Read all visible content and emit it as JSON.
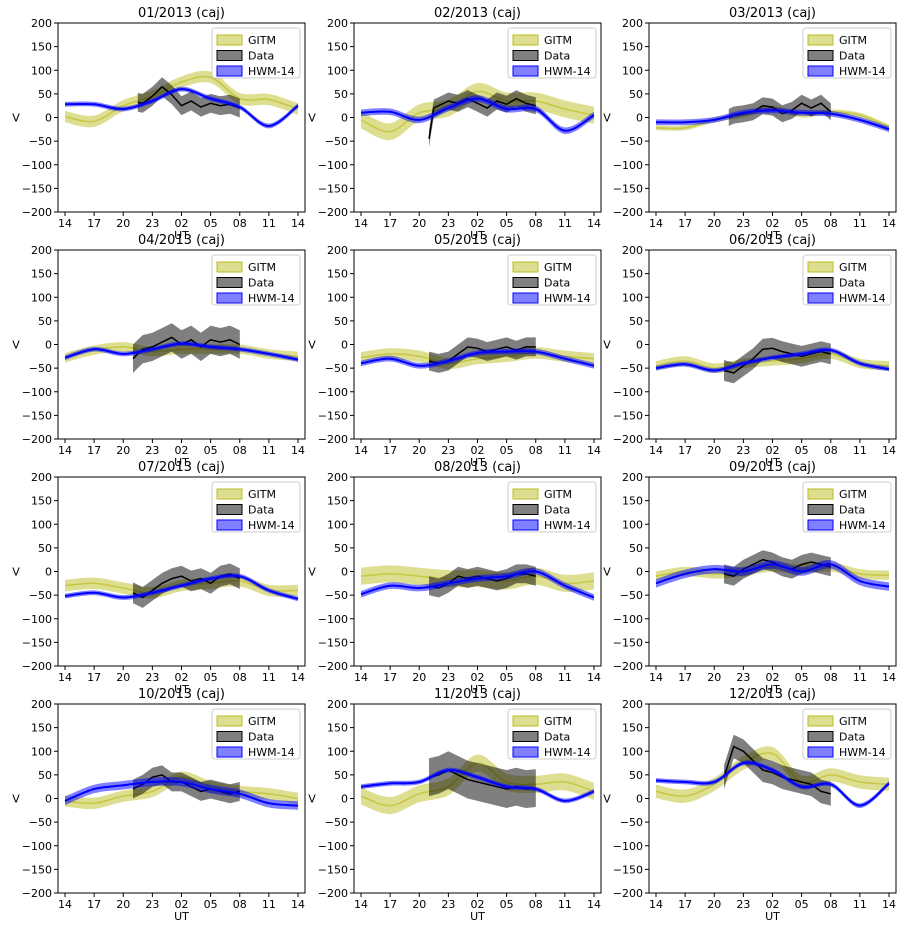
{
  "colors": {
    "gitm": "#bcbd22",
    "data": "#000000",
    "hwm": "#0000ff"
  },
  "legend_labels": [
    "GITM",
    "Data",
    "HWM-14"
  ],
  "ylabel": "V",
  "xlabel": "UT",
  "x_ticks": [
    "14",
    "17",
    "20",
    "23",
    "02",
    "05",
    "08",
    "11",
    "14"
  ],
  "y_ticks": [
    "200",
    "150",
    "100",
    "50",
    "0",
    "−50",
    "−100",
    "−150",
    "−200"
  ],
  "ylim": [
    -200,
    200
  ],
  "chart_data": [
    {
      "type": "line",
      "title": "01/2013 (caj)",
      "x": [
        0,
        3,
        6,
        9,
        12,
        15,
        18,
        21,
        24
      ],
      "series": [
        {
          "name": "GITM",
          "values": [
            2,
            -8,
            25,
            45,
            75,
            85,
            40,
            38,
            18
          ],
          "band": 12
        },
        {
          "name": "Data",
          "x": [
            7.5,
            8,
            9,
            10,
            11,
            12,
            13,
            14,
            15,
            16,
            17,
            18
          ],
          "values": [
            32,
            30,
            45,
            65,
            48,
            25,
            35,
            22,
            30,
            25,
            28,
            20
          ],
          "band": 20
        },
        {
          "name": "HWM-14",
          "values": [
            28,
            28,
            18,
            35,
            60,
            40,
            22,
            -18,
            25
          ],
          "band": 5
        }
      ]
    },
    {
      "type": "line",
      "title": "02/2013 (caj)",
      "x": [
        0,
        3,
        6,
        9,
        12,
        15,
        18,
        21,
        24
      ],
      "series": [
        {
          "name": "GITM",
          "values": [
            -5,
            -30,
            10,
            20,
            55,
            35,
            35,
            18,
            5
          ],
          "band": 18
        },
        {
          "name": "Data",
          "x": [
            7,
            7.5,
            8,
            9,
            10,
            11,
            12,
            13,
            14,
            15,
            16,
            17,
            18
          ],
          "values": [
            -45,
            20,
            25,
            35,
            30,
            40,
            30,
            20,
            35,
            28,
            40,
            30,
            25
          ],
          "band": 18
        },
        {
          "name": "HWM-14",
          "values": [
            10,
            12,
            -5,
            20,
            40,
            18,
            18,
            -28,
            5
          ],
          "band": 7
        }
      ]
    },
    {
      "type": "line",
      "title": "03/2013 (caj)",
      "x": [
        0,
        3,
        6,
        9,
        12,
        15,
        18,
        21,
        24
      ],
      "series": [
        {
          "name": "GITM",
          "values": [
            -22,
            -22,
            -5,
            5,
            20,
            5,
            12,
            5,
            -20
          ],
          "band": 5
        },
        {
          "name": "Data",
          "x": [
            7.5,
            8,
            9,
            10,
            11,
            12,
            13,
            14,
            15,
            16,
            17,
            18
          ],
          "values": [
            0,
            5,
            8,
            12,
            25,
            22,
            8,
            15,
            30,
            20,
            30,
            12
          ],
          "band": 18
        },
        {
          "name": "HWM-14",
          "values": [
            -10,
            -10,
            -5,
            10,
            15,
            10,
            8,
            -5,
            -25
          ],
          "band": 6
        }
      ]
    },
    {
      "type": "line",
      "title": "04/2013 (caj)",
      "x": [
        0,
        3,
        6,
        9,
        12,
        15,
        18,
        21,
        24
      ],
      "series": [
        {
          "name": "GITM",
          "values": [
            -28,
            -12,
            -5,
            -15,
            -10,
            -10,
            -10,
            -20,
            -25
          ],
          "band": 10
        },
        {
          "name": "Data",
          "x": [
            7,
            7.5,
            8,
            9,
            10,
            11,
            12,
            13,
            14,
            15,
            16,
            17,
            18
          ],
          "values": [
            -30,
            -20,
            -10,
            -5,
            5,
            15,
            0,
            10,
            -5,
            10,
            5,
            10,
            0
          ],
          "band": 30
        },
        {
          "name": "HWM-14",
          "values": [
            -28,
            -10,
            -20,
            -10,
            2,
            -5,
            -10,
            -20,
            -32
          ],
          "band": 5
        }
      ]
    },
    {
      "type": "line",
      "title": "05/2013 (caj)",
      "x": [
        0,
        3,
        6,
        9,
        12,
        15,
        18,
        21,
        24
      ],
      "series": [
        {
          "name": "GITM",
          "values": [
            -28,
            -20,
            -25,
            -40,
            -30,
            -25,
            -18,
            -25,
            -30
          ],
          "band": 12
        },
        {
          "name": "Data",
          "x": [
            7,
            8,
            9,
            10,
            11,
            12,
            13,
            14,
            15,
            16,
            17,
            18
          ],
          "values": [
            -35,
            -40,
            -35,
            -20,
            -5,
            -8,
            -15,
            -10,
            -5,
            -12,
            -5,
            -5
          ],
          "band": 20
        },
        {
          "name": "HWM-14",
          "values": [
            -40,
            -30,
            -45,
            -35,
            -18,
            -15,
            -15,
            -30,
            -45
          ],
          "band": 6
        }
      ]
    },
    {
      "type": "line",
      "title": "06/2013 (caj)",
      "x": [
        0,
        3,
        6,
        9,
        12,
        15,
        18,
        21,
        24
      ],
      "series": [
        {
          "name": "GITM",
          "values": [
            -45,
            -35,
            -50,
            -40,
            -35,
            -30,
            -20,
            -40,
            -45
          ],
          "band": 10
        },
        {
          "name": "Data",
          "x": [
            7,
            8,
            9,
            10,
            11,
            12,
            13,
            14,
            15,
            16,
            17,
            18
          ],
          "values": [
            -55,
            -60,
            -45,
            -30,
            -10,
            -8,
            -15,
            -20,
            -25,
            -20,
            -15,
            -20
          ],
          "band": 22
        },
        {
          "name": "HWM-14",
          "values": [
            -50,
            -42,
            -55,
            -40,
            -28,
            -20,
            -12,
            -40,
            -52
          ],
          "band": 5
        }
      ]
    },
    {
      "type": "line",
      "title": "07/2013 (caj)",
      "x": [
        0,
        3,
        6,
        9,
        12,
        15,
        18,
        21,
        24
      ],
      "series": [
        {
          "name": "GITM",
          "values": [
            -30,
            -25,
            -35,
            -45,
            -30,
            -25,
            -20,
            -40,
            -40
          ],
          "band": 12
        },
        {
          "name": "Data",
          "x": [
            7,
            8,
            9,
            10,
            11,
            12,
            13,
            14,
            15,
            16,
            17,
            18
          ],
          "values": [
            -45,
            -55,
            -40,
            -25,
            -15,
            -10,
            -20,
            -15,
            -25,
            -10,
            -5,
            -15
          ],
          "band": 22
        },
        {
          "name": "HWM-14",
          "values": [
            -52,
            -45,
            -55,
            -45,
            -30,
            -15,
            -10,
            -40,
            -58
          ],
          "band": 5
        }
      ]
    },
    {
      "type": "line",
      "title": "08/2013 (caj)",
      "x": [
        0,
        3,
        6,
        9,
        12,
        15,
        18,
        21,
        24
      ],
      "series": [
        {
          "name": "GITM",
          "values": [
            -10,
            -5,
            -10,
            -15,
            -15,
            -20,
            -10,
            -25,
            -20
          ],
          "band": 18
        },
        {
          "name": "Data",
          "x": [
            7,
            8,
            9,
            10,
            11,
            12,
            13,
            14,
            15,
            16,
            17,
            18
          ],
          "values": [
            -30,
            -35,
            -25,
            -10,
            -15,
            -10,
            -15,
            -20,
            -15,
            -5,
            -5,
            -10
          ],
          "band": 20
        },
        {
          "name": "HWM-14",
          "values": [
            -48,
            -30,
            -35,
            -25,
            -15,
            -10,
            0,
            -30,
            -55
          ],
          "band": 7
        }
      ]
    },
    {
      "type": "line",
      "title": "09/2013 (caj)",
      "x": [
        0,
        3,
        6,
        9,
        12,
        15,
        18,
        21,
        24
      ],
      "series": [
        {
          "name": "GITM",
          "values": [
            -10,
            0,
            -5,
            0,
            10,
            5,
            10,
            -5,
            -8
          ],
          "band": 10
        },
        {
          "name": "Data",
          "x": [
            7,
            8,
            9,
            10,
            11,
            12,
            13,
            14,
            15,
            16,
            17,
            18
          ],
          "values": [
            -5,
            -10,
            5,
            15,
            25,
            20,
            10,
            5,
            15,
            20,
            15,
            10
          ],
          "band": 20
        },
        {
          "name": "HWM-14",
          "values": [
            -25,
            -5,
            5,
            0,
            15,
            0,
            15,
            -20,
            -32
          ],
          "band": 9
        }
      ]
    },
    {
      "type": "line",
      "title": "10/2013 (caj)",
      "x": [
        0,
        3,
        6,
        9,
        12,
        15,
        18,
        21,
        24
      ],
      "series": [
        {
          "name": "GITM",
          "values": [
            -5,
            -10,
            5,
            15,
            45,
            25,
            15,
            10,
            0
          ],
          "band": 12
        },
        {
          "name": "Data",
          "x": [
            7,
            8,
            9,
            10,
            11,
            12,
            13,
            14,
            15,
            16,
            17,
            18
          ],
          "values": [
            20,
            30,
            45,
            50,
            35,
            35,
            25,
            15,
            20,
            15,
            10,
            15
          ],
          "band": 20
        },
        {
          "name": "HWM-14",
          "values": [
            -5,
            20,
            28,
            35,
            35,
            20,
            10,
            -10,
            -15
          ],
          "band": 9
        }
      ]
    },
    {
      "type": "line",
      "title": "11/2013 (caj)",
      "x": [
        0,
        3,
        6,
        9,
        12,
        15,
        18,
        21,
        24
      ],
      "series": [
        {
          "name": "GITM",
          "values": [
            5,
            -15,
            10,
            25,
            75,
            35,
            30,
            35,
            15
          ],
          "band": 18
        },
        {
          "name": "Data",
          "x": [
            7,
            8,
            9,
            10,
            11,
            12,
            13,
            14,
            15,
            16,
            17,
            18
          ],
          "values": [
            45,
            50,
            60,
            50,
            40,
            35,
            30,
            25,
            20,
            25,
            20,
            22
          ],
          "band": 40
        },
        {
          "name": "HWM-14",
          "values": [
            25,
            32,
            35,
            60,
            45,
            25,
            20,
            -5,
            15
          ],
          "band": 5
        }
      ]
    },
    {
      "type": "line",
      "title": "12/2013 (caj)",
      "x": [
        0,
        3,
        6,
        9,
        12,
        15,
        18,
        21,
        24
      ],
      "series": [
        {
          "name": "GITM",
          "values": [
            15,
            5,
            30,
            75,
            95,
            35,
            50,
            35,
            30
          ],
          "band": 14
        },
        {
          "name": "Data",
          "x": [
            7,
            8,
            9,
            10,
            11,
            12,
            13,
            14,
            15,
            16,
            17,
            18
          ],
          "values": [
            45,
            110,
            100,
            80,
            60,
            55,
            45,
            40,
            35,
            30,
            15,
            10
          ],
          "band": 25
        },
        {
          "name": "HWM-14",
          "values": [
            38,
            35,
            35,
            75,
            60,
            25,
            30,
            -15,
            32
          ],
          "band": 5
        }
      ]
    }
  ]
}
